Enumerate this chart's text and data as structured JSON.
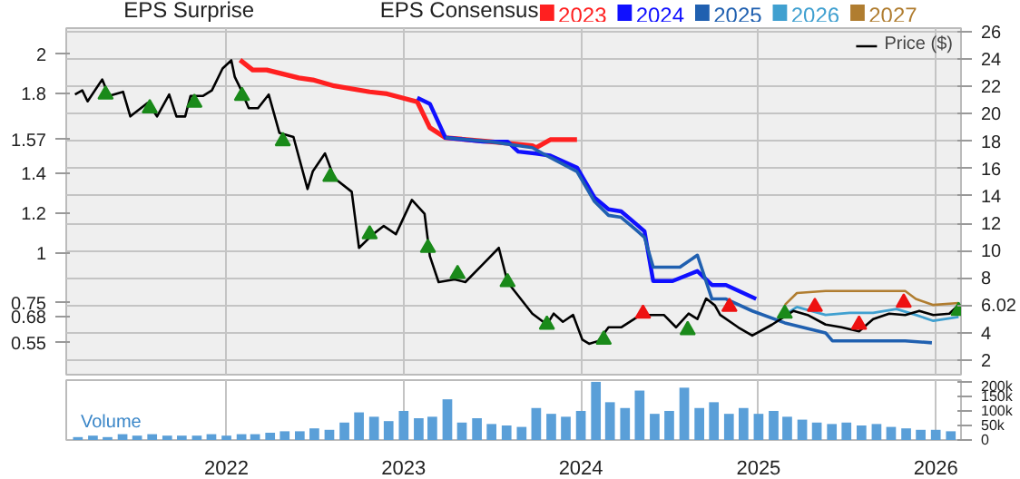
{
  "chart_data": [
    {
      "type": "line",
      "title": "EPS Surprise",
      "legend_title": "EPS Consensus",
      "xlim": [
        "2021-02-05",
        "2026-02-22"
      ],
      "xticks": [
        "2022",
        "2023",
        "2024",
        "2025",
        "2026"
      ],
      "ylim": [
        0.39,
        2.13
      ],
      "yticks": [
        2,
        1.8,
        1.57,
        1.4,
        1.2,
        1,
        0.75,
        0.68,
        0.55
      ],
      "y2lim": [
        0.94,
        26.25
      ],
      "y2ticks": [
        26,
        24,
        22,
        20,
        18,
        16,
        14,
        12,
        10,
        8,
        6.02,
        4,
        2
      ],
      "grid": true,
      "legend": "top right",
      "tick_labels": "y",
      "series": [
        {
          "name": "2023",
          "color": "#ff2020",
          "x": [
            "2022-01-29",
            "2022-02-24",
            "2022-03-25",
            "2022-05-30",
            "2022-06-28",
            "2022-08-11",
            "2022-10-23",
            "2022-11-28",
            "2023-01-29",
            "2023-02-24",
            "2023-03-28",
            "2023-06-28",
            "2023-09-23",
            "2023-10-01",
            "2023-10-30",
            "2023-12-24"
          ],
          "values": [
            1.97,
            1.92,
            1.92,
            1.88,
            1.87,
            1.84,
            1.81,
            1.8,
            1.76,
            1.63,
            1.58,
            1.56,
            1.54,
            1.53,
            1.57,
            1.57
          ]
        },
        {
          "name": "2024",
          "color": "#1010ff",
          "x": [
            "2023-01-29",
            "2023-02-24",
            "2023-03-28",
            "2023-06-13",
            "2023-08-03",
            "2023-08-25",
            "2023-10-01",
            "2023-10-30",
            "2023-12-24",
            "2024-01-29",
            "2024-02-27",
            "2024-03-24",
            "2024-04-22",
            "2024-05-11",
            "2024-05-29",
            "2024-07-08",
            "2024-08-28",
            "2024-09-27",
            "2024-10-26",
            "2024-12-27"
          ],
          "values": [
            1.78,
            1.75,
            1.58,
            1.56,
            1.56,
            1.51,
            1.5,
            1.49,
            1.43,
            1.28,
            1.22,
            1.21,
            1.15,
            1.11,
            0.86,
            0.86,
            0.91,
            0.84,
            0.84,
            0.77
          ]
        },
        {
          "name": "2025",
          "color": "#2060b0",
          "x": [
            "2023-03-28",
            "2023-06-28",
            "2023-09-23",
            "2023-10-30",
            "2023-12-24",
            "2024-01-29",
            "2024-02-27",
            "2024-03-24",
            "2024-04-22",
            "2024-05-11",
            "2024-05-29",
            "2024-07-23",
            "2024-08-28",
            "2024-09-27",
            "2024-10-26",
            "2024-12-19",
            "2025-02-24",
            "2025-05-19",
            "2025-06-02",
            "2025-08-25",
            "2025-10-30",
            "2025-12-24"
          ],
          "values": [
            1.58,
            1.56,
            1.53,
            1.48,
            1.41,
            1.26,
            1.19,
            1.18,
            1.12,
            1.08,
            0.93,
            0.93,
            0.99,
            0.77,
            0.77,
            0.71,
            0.65,
            0.6,
            0.56,
            0.56,
            0.56,
            0.55
          ]
        },
        {
          "name": "2026",
          "color": "#40a0d0",
          "x": [
            "2025-02-24",
            "2025-03-21",
            "2025-05-19",
            "2025-07-08",
            "2025-08-25",
            "2025-10-12",
            "2025-11-21",
            "2025-12-27",
            "2026-02-17"
          ],
          "values": [
            0.69,
            0.73,
            0.69,
            0.7,
            0.7,
            0.72,
            0.69,
            0.66,
            0.68
          ]
        },
        {
          "name": "2027",
          "color": "#b07d30",
          "x": [
            "2025-02-24",
            "2025-03-21",
            "2025-05-19",
            "2025-10-30",
            "2025-11-21",
            "2025-12-27",
            "2026-02-17"
          ],
          "values": [
            0.74,
            0.8,
            0.81,
            0.81,
            0.77,
            0.74,
            0.75
          ]
        },
        {
          "name": "Price ($)",
          "color": "#000000",
          "axis": "y2",
          "x": [
            "2021-02-23",
            "2021-03-10",
            "2021-03-21",
            "2021-04-20",
            "2021-05-04",
            "2021-06-02",
            "2021-06-17",
            "2021-07-23",
            "2021-08-11",
            "2021-09-05",
            "2021-09-20",
            "2021-10-08",
            "2021-10-19",
            "2021-11-14",
            "2021-12-02",
            "2021-12-24",
            "2022-01-11",
            "2022-01-18",
            "2022-01-29",
            "2022-02-16",
            "2022-03-07",
            "2022-03-29",
            "2022-04-20",
            "2022-05-19",
            "2022-06-17",
            "2022-06-28",
            "2022-07-23",
            "2022-08-11",
            "2022-09-16",
            "2022-10-01",
            "2022-10-30",
            "2022-11-21",
            "2022-12-16",
            "2023-01-18",
            "2023-02-13",
            "2023-02-24",
            "2023-03-14",
            "2023-04-16",
            "2023-05-08",
            "2023-06-13",
            "2023-07-16",
            "2023-08-03",
            "2023-09-23",
            "2023-10-23",
            "2023-11-06",
            "2023-11-25",
            "2023-12-16",
            "2024-01-04",
            "2024-01-18",
            "2024-02-06",
            "2024-02-27",
            "2024-03-24",
            "2024-05-03",
            "2024-06-20",
            "2024-07-15",
            "2024-08-10",
            "2024-08-28",
            "2024-09-15",
            "2024-10-03",
            "2024-10-14",
            "2024-11-20",
            "2024-12-19",
            "2025-01-29",
            "2025-03-14",
            "2025-04-12",
            "2025-05-19",
            "2025-06-21",
            "2025-07-27",
            "2025-08-25",
            "2025-09-27",
            "2025-10-30",
            "2025-11-28",
            "2025-12-27",
            "2026-01-29",
            "2026-02-17"
          ],
          "values": [
            21.4,
            21.7,
            20.9,
            22.5,
            21.3,
            21.6,
            19.8,
            20.8,
            19.8,
            21.4,
            19.8,
            19.8,
            21.3,
            21.3,
            21.7,
            23.3,
            23.9,
            22.7,
            21.9,
            20.4,
            20.4,
            21.4,
            18.6,
            18.3,
            14.5,
            15.8,
            17.1,
            15.3,
            14.3,
            10.2,
            11.2,
            11.8,
            11.2,
            13.7,
            12.7,
            9.6,
            7.7,
            7.9,
            7.7,
            9.0,
            10.2,
            7.7,
            5.4,
            4.6,
            5.4,
            4.8,
            5.3,
            3.5,
            3.2,
            3.4,
            4.4,
            4.4,
            5.3,
            5.3,
            4.4,
            5.4,
            5.0,
            6.5,
            6.0,
            5.3,
            4.4,
            3.8,
            4.6,
            5.6,
            5.3,
            4.6,
            4.4,
            4.1,
            5.0,
            5.4,
            5.3,
            5.6,
            5.3,
            5.4,
            6.02
          ]
        },
        {
          "type": "scatter",
          "marker": "triangle",
          "color": "#1a8a1a",
          "axis": "y2",
          "x": [
            "2021-04-27",
            "2021-07-27",
            "2021-10-27",
            "2022-02-02",
            "2022-04-27",
            "2022-08-03",
            "2022-10-23",
            "2023-02-20",
            "2023-04-22",
            "2023-08-03",
            "2023-10-23",
            "2024-02-17",
            "2024-08-08",
            "2025-02-24",
            "2026-02-17"
          ],
          "values": [
            21.4,
            20.4,
            20.8,
            21.3,
            18.0,
            15.4,
            11.2,
            10.2,
            8.3,
            7.7,
            4.6,
            3.5,
            4.2,
            5.4,
            5.6
          ]
        },
        {
          "type": "scatter",
          "marker": "triangle",
          "color": "#ee1111",
          "axis": "y2",
          "x": [
            "2024-05-08",
            "2024-11-02",
            "2025-04-27",
            "2025-07-27",
            "2025-10-27"
          ],
          "values": [
            5.4,
            5.9,
            5.9,
            4.6,
            6.2
          ]
        }
      ]
    },
    {
      "type": "bar",
      "title": "Volume",
      "color": "#5a9fd8",
      "xlim": [
        "2021-02-05",
        "2026-02-22"
      ],
      "xticks": [
        {
          "value": "2022-01-01",
          "label": "2022"
        },
        {
          "value": "2023-01-01",
          "label": "2023"
        },
        {
          "value": "2024-01-01",
          "label": "2024"
        },
        {
          "value": "2025-01-01",
          "label": "2025"
        },
        {
          "value": "2026-01-01",
          "label": "2026"
        }
      ],
      "ylim": [
        0,
        206000
      ],
      "yticks": [
        {
          "value": 0,
          "label": "0"
        },
        {
          "value": 50000,
          "label": "50k"
        },
        {
          "value": 100000,
          "label": "100k"
        },
        {
          "value": 150000,
          "label": "150k"
        },
        {
          "value": 200000,
          "label": "200k"
        }
      ],
      "grid": "x",
      "x": [
        "2021-03",
        "2021-04",
        "2021-05",
        "2021-06",
        "2021-07",
        "2021-08",
        "2021-09",
        "2021-10",
        "2021-11",
        "2021-12",
        "2022-01",
        "2022-02",
        "2022-03",
        "2022-04",
        "2022-05",
        "2022-06",
        "2022-07",
        "2022-08",
        "2022-09",
        "2022-10",
        "2022-11",
        "2022-12",
        "2023-01",
        "2023-02",
        "2023-03",
        "2023-04",
        "2023-05",
        "2023-06",
        "2023-07",
        "2023-08",
        "2023-09",
        "2023-10",
        "2023-11",
        "2023-12",
        "2024-01",
        "2024-02",
        "2024-03",
        "2024-04",
        "2024-05",
        "2024-06",
        "2024-07",
        "2024-08",
        "2024-09",
        "2024-10",
        "2024-11",
        "2024-12",
        "2025-01",
        "2025-02",
        "2025-03",
        "2025-04",
        "2025-05",
        "2025-06",
        "2025-07",
        "2025-08",
        "2025-09",
        "2025-10",
        "2025-11",
        "2025-12",
        "2026-01",
        "2026-02"
      ],
      "values": [
        10000,
        15000,
        10000,
        20000,
        15000,
        20000,
        15000,
        15000,
        15000,
        20000,
        15000,
        20000,
        20000,
        25000,
        30000,
        30000,
        40000,
        35000,
        60000,
        95000,
        80000,
        65000,
        100000,
        75000,
        80000,
        140000,
        60000,
        75000,
        55000,
        50000,
        45000,
        110000,
        90000,
        80000,
        100000,
        200000,
        130000,
        110000,
        170000,
        90000,
        100000,
        180000,
        110000,
        130000,
        90000,
        110000,
        90000,
        100000,
        80000,
        70000,
        60000,
        55000,
        60000,
        50000,
        55000,
        45000,
        40000,
        35000,
        35000,
        30000
      ]
    }
  ]
}
